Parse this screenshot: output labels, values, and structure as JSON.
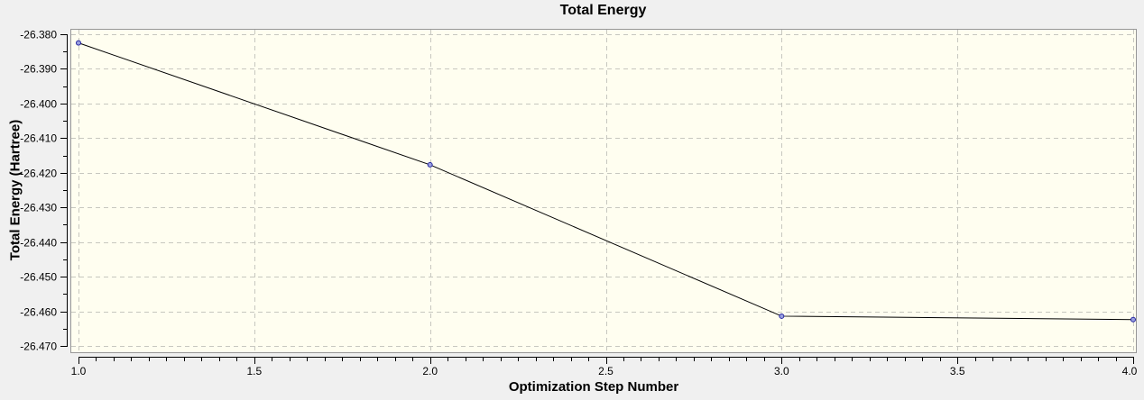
{
  "chart_data": {
    "type": "line",
    "title": "Total Energy",
    "xlabel": "Optimization Step Number",
    "ylabel": "Total Energy (Hartree)",
    "legend": "none",
    "grid": "major-dashed",
    "marker": "circle",
    "series": [
      {
        "name": "Total Energy",
        "x": [
          1.0,
          2.0,
          3.0,
          4.0
        ],
        "y": [
          -26.3825,
          -26.4177,
          -26.4614,
          -26.4624
        ]
      }
    ],
    "xlim": [
      1.0,
      4.0
    ],
    "ylim": [
      -26.47,
      -26.38
    ],
    "x_tick_values": [
      1.0,
      1.5,
      2.0,
      2.5,
      3.0,
      3.5,
      4.0
    ],
    "x_tick_labels": [
      "1.0",
      "1.5",
      "2.0",
      "2.5",
      "3.0",
      "3.5",
      "4.0"
    ],
    "x_minor_tick_step": 0.05,
    "y_tick_values": [
      -26.38,
      -26.39,
      -26.4,
      -26.41,
      -26.42,
      -26.43,
      -26.44,
      -26.45,
      -26.46,
      -26.47
    ],
    "y_tick_labels": [
      "-26.380",
      "-26.390",
      "-26.400",
      "-26.410",
      "-26.420",
      "-26.430",
      "-26.440",
      "-26.450",
      "-26.460",
      "-26.470"
    ],
    "y_minor_tick_step": 0.005,
    "colors": {
      "canvas_bg": "#f0f0f0",
      "plot_bg": "#fffef0",
      "grid": "#c7c7bf",
      "plot_border": "#969696",
      "axis": "#000000",
      "line": "#000000",
      "marker_fill": "#9aa0e0",
      "marker_stroke": "#2525a0",
      "text": "#000000"
    }
  }
}
